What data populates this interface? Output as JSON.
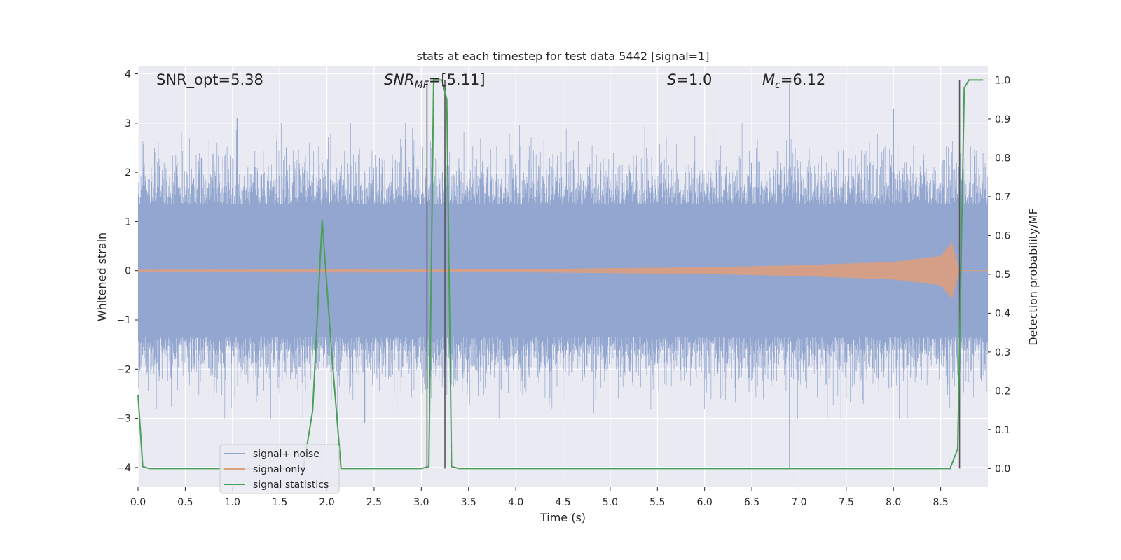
{
  "chart_data": {
    "type": "line",
    "title": "stats at each timestep for test data 5442 [signal=1]",
    "xlabel": "Time (s)",
    "ylabel": "Whitened strain",
    "y2label": "Detection probability/MF",
    "xlim": [
      0.0,
      9.0
    ],
    "ylim": [
      -4.4,
      4.15
    ],
    "y2lim": [
      -0.048,
      1.035
    ],
    "x_ticks": [
      "0.0",
      "0.5",
      "1.0",
      "1.5",
      "2.0",
      "2.5",
      "3.0",
      "3.5",
      "4.0",
      "4.5",
      "5.0",
      "5.5",
      "6.0",
      "6.5",
      "7.0",
      "7.5",
      "8.0",
      "8.5"
    ],
    "y_ticks": [
      "4",
      "3",
      "2",
      "1",
      "0",
      "−1",
      "−2",
      "−3",
      "−4"
    ],
    "y2_ticks": [
      "1.0",
      "0.9",
      "0.8",
      "0.7",
      "0.6",
      "0.5",
      "0.4",
      "0.3",
      "0.2",
      "0.1",
      "0.0"
    ],
    "grid": true,
    "legend_position": "lower-left",
    "annotations": {
      "snr_opt": "SNR_opt=5.38",
      "snr_mf_main": "SNR",
      "snr_mf_sub": "MF",
      "snr_mf_value": "=[5.11]",
      "s_main": "S",
      "s_value": "=1.0",
      "mc_main": "M",
      "mc_sub": "c",
      "mc_value": "=6.12"
    },
    "series": [
      {
        "name": "signal+ noise",
        "color": "#92a6cf",
        "description_axis": "left",
        "approx_envelope": {
          "typical_abs_max": 2.2,
          "extreme_max": 3.8,
          "extreme_min": -4.0
        },
        "outliers": [
          [
            1.05,
            3.1
          ],
          [
            6.9,
            3.8
          ],
          [
            6.9,
            -4.0
          ],
          [
            8.0,
            3.3
          ],
          [
            2.4,
            -3.1
          ]
        ]
      },
      {
        "name": "signal only",
        "color": "#dd9f7e",
        "description_axis": "left",
        "envelope": {
          "x": [
            0.0,
            3.0,
            4.0,
            5.0,
            6.0,
            7.0,
            8.0,
            8.5,
            8.62,
            8.7,
            9.0
          ],
          "amp": [
            0.01,
            0.02,
            0.03,
            0.05,
            0.07,
            0.11,
            0.18,
            0.3,
            0.58,
            0.0,
            0.0
          ]
        }
      },
      {
        "name": "signal statistics",
        "color": "#4c9f5a",
        "description_axis": "right",
        "x": [
          0.0,
          0.05,
          0.12,
          1.75,
          1.85,
          1.95,
          2.05,
          2.15,
          3.0,
          3.08,
          3.13,
          3.18,
          3.22,
          3.27,
          3.32,
          3.4,
          8.6,
          8.68,
          8.75,
          8.8,
          8.85,
          8.95
        ],
        "values": [
          0.19,
          0.005,
          0.0,
          0.0,
          0.15,
          0.64,
          0.3,
          0.0,
          0.0,
          0.005,
          1.0,
          1.0,
          1.0,
          0.95,
          0.005,
          0.0,
          0.0,
          0.05,
          0.98,
          1.0,
          1.0,
          1.0
        ]
      }
    ],
    "vertical_lines": [
      3.06,
      3.25,
      8.7
    ],
    "white_hlines_right_axis": [
      0.7,
      0.6,
      0.5,
      0.4,
      0.3
    ]
  }
}
